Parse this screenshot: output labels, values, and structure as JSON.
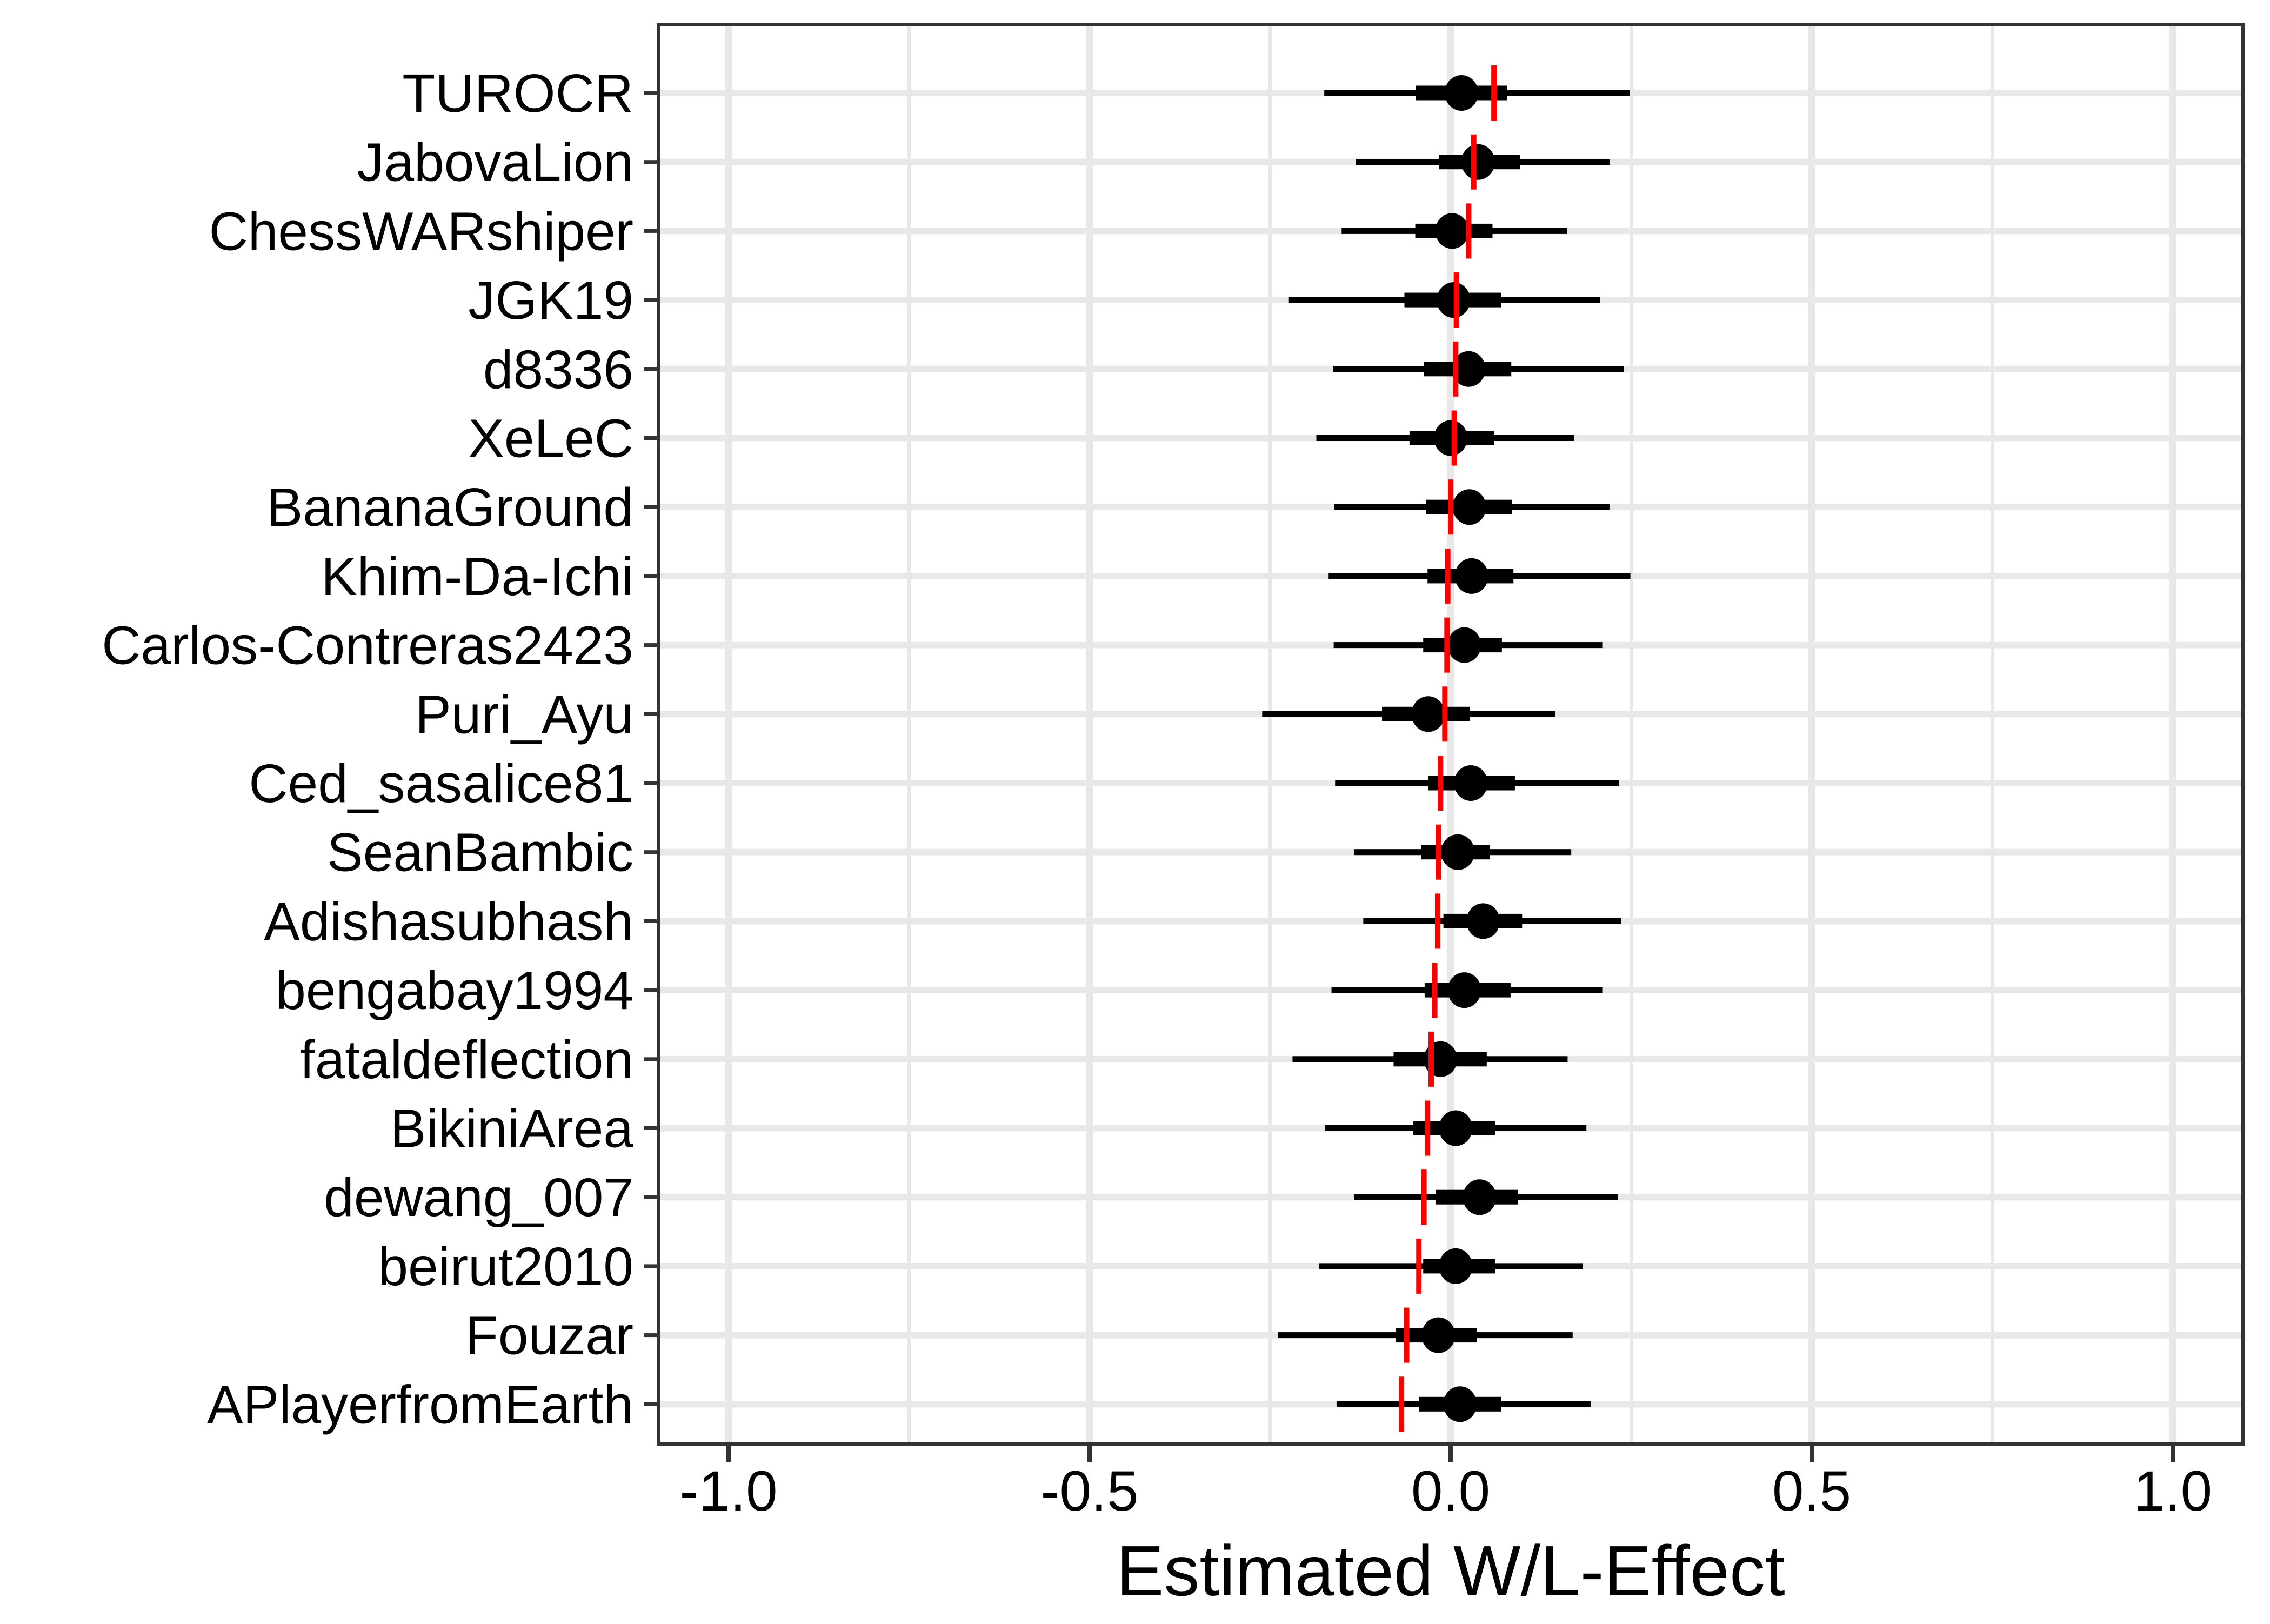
{
  "chart_data": {
    "type": "forest_pointrange",
    "title": "",
    "xlabel": "Estimated W/L-Effect",
    "ylabel": "",
    "x_ticks": [
      -1.0,
      -0.5,
      0.0,
      0.5,
      1.0
    ],
    "x_tick_labels": [
      "-1.0",
      "-0.5",
      "0.0",
      "0.5",
      "1.0"
    ],
    "x_minor_ticks": [
      -0.75,
      -0.25,
      0.25,
      0.75
    ],
    "xlim": [
      -1.1,
      1.1
    ],
    "grid": true,
    "legend_position": "none",
    "categories": [
      "TUROCR",
      "JabovaLion",
      "ChessWARshiper",
      "JGK19",
      "d8336",
      "XeLeC",
      "BananaGround",
      "Khim-Da-Ichi",
      "Carlos-Contreras2423",
      "Puri_Ayu",
      "Ced_sasalice81",
      "SeanBambic",
      "Adishasubhash",
      "bengabay1994",
      "fataldeflection",
      "BikiniArea",
      "dewang_007",
      "beirut2010",
      "Fouzar",
      "APlayerfromEarth"
    ],
    "series": [
      {
        "player": "TUROCR",
        "estimate": 0.015,
        "inner_low": -0.048,
        "inner_high": 0.078,
        "outer_low": -0.175,
        "outer_high": 0.248,
        "ref_line_x": 0.06
      },
      {
        "player": "JabovaLion",
        "estimate": 0.038,
        "inner_low": -0.016,
        "inner_high": 0.096,
        "outer_low": -0.131,
        "outer_high": 0.22,
        "ref_line_x": 0.032
      },
      {
        "player": "ChessWARshiper",
        "estimate": 0.002,
        "inner_low": -0.049,
        "inner_high": 0.058,
        "outer_low": -0.151,
        "outer_high": 0.161,
        "ref_line_x": 0.025
      },
      {
        "player": "JGK19",
        "estimate": 0.004,
        "inner_low": -0.064,
        "inner_high": 0.07,
        "outer_low": -0.224,
        "outer_high": 0.207,
        "ref_line_x": 0.008
      },
      {
        "player": "d8336",
        "estimate": 0.025,
        "inner_low": -0.037,
        "inner_high": 0.084,
        "outer_low": -0.163,
        "outer_high": 0.24,
        "ref_line_x": 0.007
      },
      {
        "player": "XeLeC",
        "estimate": 0.0,
        "inner_low": -0.057,
        "inner_high": 0.06,
        "outer_low": -0.186,
        "outer_high": 0.171,
        "ref_line_x": 0.005
      },
      {
        "player": "BananaGround",
        "estimate": 0.026,
        "inner_low": -0.034,
        "inner_high": 0.085,
        "outer_low": -0.161,
        "outer_high": 0.22,
        "ref_line_x": 0.0
      },
      {
        "player": "Khim-Da-Ichi",
        "estimate": 0.029,
        "inner_low": -0.032,
        "inner_high": 0.087,
        "outer_low": -0.169,
        "outer_high": 0.249,
        "ref_line_x": -0.004
      },
      {
        "player": "Carlos-Contreras2423",
        "estimate": 0.019,
        "inner_low": -0.038,
        "inner_high": 0.071,
        "outer_low": -0.162,
        "outer_high": 0.21,
        "ref_line_x": -0.005
      },
      {
        "player": "Puri_Ayu",
        "estimate": -0.031,
        "inner_low": -0.095,
        "inner_high": 0.027,
        "outer_low": -0.261,
        "outer_high": 0.145,
        "ref_line_x": -0.008
      },
      {
        "player": "Ced_sasalice81",
        "estimate": 0.028,
        "inner_low": -0.031,
        "inner_high": 0.089,
        "outer_low": -0.16,
        "outer_high": 0.233,
        "ref_line_x": -0.014
      },
      {
        "player": "SeanBambic",
        "estimate": 0.01,
        "inner_low": -0.041,
        "inner_high": 0.054,
        "outer_low": -0.134,
        "outer_high": 0.167,
        "ref_line_x": -0.017
      },
      {
        "player": "Adishasubhash",
        "estimate": 0.045,
        "inner_low": -0.01,
        "inner_high": 0.099,
        "outer_low": -0.121,
        "outer_high": 0.236,
        "ref_line_x": -0.018
      },
      {
        "player": "bengabay1994",
        "estimate": 0.019,
        "inner_low": -0.036,
        "inner_high": 0.083,
        "outer_low": -0.165,
        "outer_high": 0.21,
        "ref_line_x": -0.022
      },
      {
        "player": "fataldeflection",
        "estimate": -0.014,
        "inner_low": -0.079,
        "inner_high": 0.05,
        "outer_low": -0.219,
        "outer_high": 0.162,
        "ref_line_x": -0.027
      },
      {
        "player": "BikiniArea",
        "estimate": 0.007,
        "inner_low": -0.052,
        "inner_high": 0.062,
        "outer_low": -0.174,
        "outer_high": 0.188,
        "ref_line_x": -0.032
      },
      {
        "player": "dewang_007",
        "estimate": 0.04,
        "inner_low": -0.021,
        "inner_high": 0.093,
        "outer_low": -0.134,
        "outer_high": 0.232,
        "ref_line_x": -0.037
      },
      {
        "player": "beirut2010",
        "estimate": 0.007,
        "inner_low": -0.038,
        "inner_high": 0.062,
        "outer_low": -0.182,
        "outer_high": 0.183,
        "ref_line_x": -0.044
      },
      {
        "player": "Fouzar",
        "estimate": -0.017,
        "inner_low": -0.076,
        "inner_high": 0.036,
        "outer_low": -0.239,
        "outer_high": 0.169,
        "ref_line_x": -0.061
      },
      {
        "player": "APlayerfromEarth",
        "estimate": 0.013,
        "inner_low": -0.044,
        "inner_high": 0.07,
        "outer_low": -0.158,
        "outer_high": 0.194,
        "ref_line_x": -0.068
      }
    ],
    "colors": {
      "point": "#000000",
      "interval": "#000000",
      "reference_line": "#FF0000",
      "gridline": "#E8E8E8",
      "panel_border": "#333333",
      "tick_mark": "#333333",
      "axis_text": "#000000",
      "background": "#FFFFFF"
    }
  }
}
